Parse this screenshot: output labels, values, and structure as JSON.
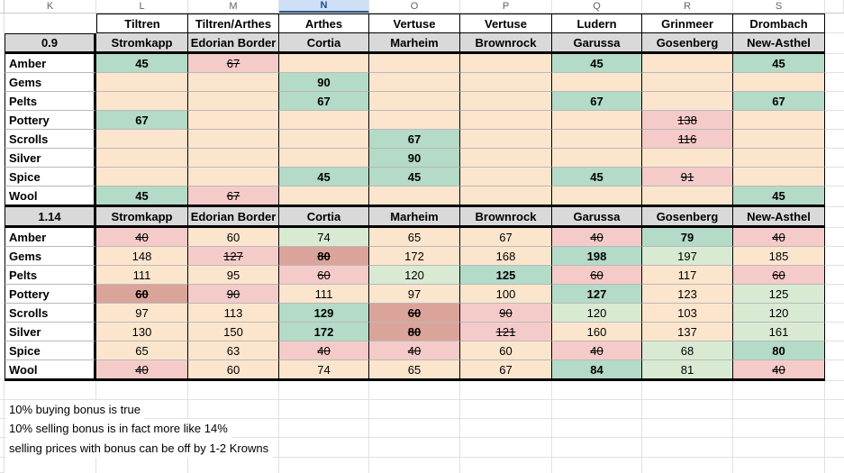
{
  "sheet": {
    "column_letters": [
      "K",
      "L",
      "M",
      "N",
      "O",
      "P",
      "Q",
      "R",
      "S"
    ],
    "selected_column": "N",
    "regions": [
      "Tiltren",
      "Tiltren/Arthes",
      "Arthes",
      "Vertuse",
      "Vertuse",
      "Ludern",
      "Grinmeer",
      "Drombach"
    ],
    "tables": [
      {
        "label": "0.9",
        "cities": [
          "Stromkapp",
          "Edorian Border",
          "Cortia",
          "Marheim",
          "Brownrock",
          "Garussa",
          "Gosenberg",
          "New-Asthel"
        ],
        "rows": [
          {
            "good": "Amber",
            "cells": [
              [
                "45",
                "g"
              ],
              [
                "67",
                "s"
              ],
              [
                "",
                "e"
              ],
              [
                "",
                "e"
              ],
              [
                "",
                "e"
              ],
              [
                "45",
                "g"
              ],
              [
                "",
                "e"
              ],
              [
                "45",
                "g"
              ]
            ]
          },
          {
            "good": "Gems",
            "cells": [
              [
                "",
                "e"
              ],
              [
                "",
                "e"
              ],
              [
                "90",
                "g"
              ],
              [
                "",
                "e"
              ],
              [
                "",
                "e"
              ],
              [
                "",
                "e"
              ],
              [
                "",
                "e"
              ],
              [
                "",
                "e"
              ]
            ]
          },
          {
            "good": "Pelts",
            "cells": [
              [
                "",
                "e"
              ],
              [
                "",
                "e"
              ],
              [
                "67",
                "g"
              ],
              [
                "",
                "e"
              ],
              [
                "",
                "e"
              ],
              [
                "67",
                "g"
              ],
              [
                "",
                "e"
              ],
              [
                "67",
                "g"
              ]
            ]
          },
          {
            "good": "Pottery",
            "cells": [
              [
                "67",
                "g"
              ],
              [
                "",
                "e"
              ],
              [
                "",
                "e"
              ],
              [
                "",
                "e"
              ],
              [
                "",
                "e"
              ],
              [
                "",
                "e"
              ],
              [
                "138",
                "s"
              ],
              [
                "",
                "e"
              ]
            ]
          },
          {
            "good": "Scrolls",
            "cells": [
              [
                "",
                "e"
              ],
              [
                "",
                "e"
              ],
              [
                "",
                "e"
              ],
              [
                "67",
                "g"
              ],
              [
                "",
                "e"
              ],
              [
                "",
                "e"
              ],
              [
                "116",
                "s"
              ],
              [
                "",
                "e"
              ]
            ]
          },
          {
            "good": "Silver",
            "cells": [
              [
                "",
                "e"
              ],
              [
                "",
                "e"
              ],
              [
                "",
                "e"
              ],
              [
                "90",
                "g"
              ],
              [
                "",
                "e"
              ],
              [
                "",
                "e"
              ],
              [
                "",
                "e"
              ],
              [
                "",
                "e"
              ]
            ]
          },
          {
            "good": "Spice",
            "cells": [
              [
                "",
                "e"
              ],
              [
                "",
                "e"
              ],
              [
                "45",
                "g"
              ],
              [
                "45",
                "g"
              ],
              [
                "",
                "e"
              ],
              [
                "45",
                "g"
              ],
              [
                "91",
                "s"
              ],
              [
                "",
                "e"
              ]
            ]
          },
          {
            "good": "Wool",
            "cells": [
              [
                "45",
                "g"
              ],
              [
                "67",
                "s"
              ],
              [
                "",
                "e"
              ],
              [
                "",
                "e"
              ],
              [
                "",
                "e"
              ],
              [
                "",
                "e"
              ],
              [
                "",
                "e"
              ],
              [
                "45",
                "g"
              ]
            ]
          }
        ]
      },
      {
        "label": "1.14",
        "cities": [
          "Stromkapp",
          "Edorian Border",
          "Cortia",
          "Marheim",
          "Brownrock",
          "Garussa",
          "Gosenberg",
          "New-Asthel"
        ],
        "rows": [
          {
            "good": "Amber",
            "cells": [
              [
                "40",
                "s"
              ],
              [
                "60",
                "p"
              ],
              [
                "74",
                "l"
              ],
              [
                "65",
                "p"
              ],
              [
                "67",
                "p"
              ],
              [
                "40",
                "s"
              ],
              [
                "79",
                "g"
              ],
              [
                "40",
                "s"
              ]
            ]
          },
          {
            "good": "Gems",
            "cells": [
              [
                "148",
                "p"
              ],
              [
                "127",
                "s"
              ],
              [
                "80",
                "S"
              ],
              [
                "172",
                "p"
              ],
              [
                "168",
                "p"
              ],
              [
                "198",
                "g"
              ],
              [
                "197",
                "l"
              ],
              [
                "185",
                "p"
              ]
            ]
          },
          {
            "good": "Pelts",
            "cells": [
              [
                "111",
                "p"
              ],
              [
                "95",
                "p"
              ],
              [
                "60",
                "s"
              ],
              [
                "120",
                "l"
              ],
              [
                "125",
                "g"
              ],
              [
                "60",
                "s"
              ],
              [
                "117",
                "p"
              ],
              [
                "60",
                "s"
              ]
            ]
          },
          {
            "good": "Pottery",
            "cells": [
              [
                "60",
                "S"
              ],
              [
                "90",
                "s"
              ],
              [
                "111",
                "p"
              ],
              [
                "97",
                "p"
              ],
              [
                "100",
                "p"
              ],
              [
                "127",
                "g"
              ],
              [
                "123",
                "p"
              ],
              [
                "125",
                "l"
              ]
            ]
          },
          {
            "good": "Scrolls",
            "cells": [
              [
                "97",
                "p"
              ],
              [
                "113",
                "p"
              ],
              [
                "129",
                "g"
              ],
              [
                "60",
                "S"
              ],
              [
                "90",
                "s"
              ],
              [
                "120",
                "l"
              ],
              [
                "103",
                "p"
              ],
              [
                "120",
                "l"
              ]
            ]
          },
          {
            "good": "Silver",
            "cells": [
              [
                "130",
                "p"
              ],
              [
                "150",
                "p"
              ],
              [
                "172",
                "g"
              ],
              [
                "80",
                "S"
              ],
              [
                "121",
                "s"
              ],
              [
                "160",
                "p"
              ],
              [
                "137",
                "p"
              ],
              [
                "161",
                "l"
              ]
            ]
          },
          {
            "good": "Spice",
            "cells": [
              [
                "65",
                "p"
              ],
              [
                "63",
                "p"
              ],
              [
                "40",
                "s"
              ],
              [
                "40",
                "s"
              ],
              [
                "60",
                "p"
              ],
              [
                "40",
                "s"
              ],
              [
                "68",
                "l"
              ],
              [
                "80",
                "g"
              ]
            ]
          },
          {
            "good": "Wool",
            "cells": [
              [
                "40",
                "s"
              ],
              [
                "60",
                "p"
              ],
              [
                "74",
                "p"
              ],
              [
                "65",
                "p"
              ],
              [
                "67",
                "p"
              ],
              [
                "84",
                "g"
              ],
              [
                "81",
                "l"
              ],
              [
                "40",
                "s"
              ]
            ]
          }
        ]
      }
    ],
    "notes": [
      "10% buying bonus is true",
      "10% selling bonus is in fact more like 14%",
      "selling prices with bonus can be off by 1-2 Krowns"
    ]
  },
  "cell_styles": {
    "g": {
      "bg": "mint",
      "bold": true,
      "strike": false
    },
    "l": {
      "bg": "lgreen",
      "bold": false,
      "strike": false
    },
    "p": {
      "bg": "peach",
      "bold": false,
      "strike": false
    },
    "e": {
      "bg": "peach",
      "bold": false,
      "strike": false
    },
    "s": {
      "bg": "pink",
      "bold": false,
      "strike": true
    },
    "S": {
      "bg": "salmon",
      "bold": true,
      "strike": true
    }
  },
  "colors": {
    "mint": "#b4dac8",
    "lgreen": "#d9ead3",
    "peach": "#fce5cd",
    "pink": "#f4cbc9",
    "salmon": "#dba49a",
    "header_gray": "#d9d9d9",
    "sel_bg": "#cfdff6",
    "sel_text": "#17508f",
    "sel_border": "#2f5785",
    "letter_text": "#5f6368",
    "grid": "#e1e1e1",
    "grid_dark": "#b9b9b9"
  }
}
